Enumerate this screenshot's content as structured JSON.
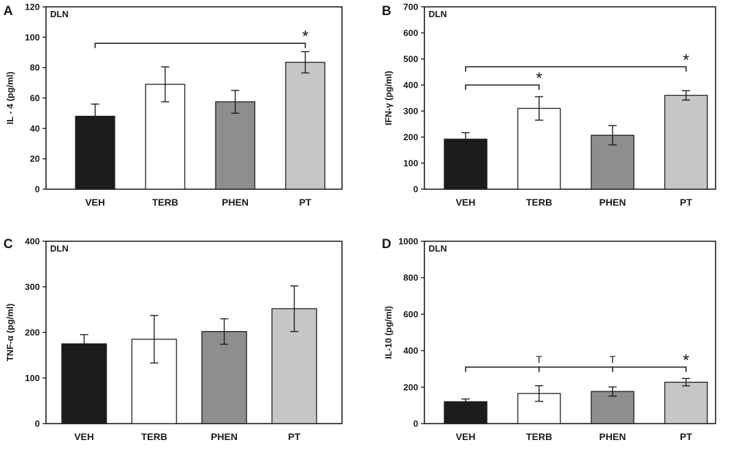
{
  "figure": {
    "colors": {
      "VEH": "#1c1c1c",
      "TERB": "#ffffff",
      "PHEN": "#8e8e8e",
      "PT": "#c6c6c6",
      "axis": "#1a1a1a"
    }
  },
  "chart_data": [
    {
      "type": "bar",
      "letter": "A",
      "region": "DLN",
      "ylabel": "IL - 4 (pg/ml)",
      "ylim": [
        0,
        120
      ],
      "yticks": [
        "0",
        "20",
        "40",
        "60",
        "80",
        "100",
        "120"
      ],
      "categories": [
        "VEH",
        "TERB",
        "PHEN",
        "PT"
      ],
      "values": [
        48,
        69,
        57.5,
        83.5
      ],
      "errors": [
        8,
        11.5,
        7.5,
        7
      ],
      "comparisons": [
        {
          "from": 0,
          "to": 3,
          "level": 96,
          "symbol": "*"
        }
      ]
    },
    {
      "type": "bar",
      "letter": "B",
      "region": "DLN",
      "ylabel": "IFN-γ (pg/ml)",
      "ylim": [
        0,
        700
      ],
      "yticks": [
        "0",
        "100",
        "200",
        "300",
        "400",
        "500",
        "600",
        "700"
      ],
      "categories": [
        "VEH",
        "TERB",
        "PHEN",
        "PT"
      ],
      "values": [
        192,
        310,
        207,
        360
      ],
      "errors": [
        25,
        45,
        37,
        18
      ],
      "comparisons": [
        {
          "from": 0,
          "to": 3,
          "level": 470,
          "symbol": "*"
        },
        {
          "from": 0,
          "to": 1,
          "level": 400,
          "symbol": "*"
        }
      ]
    },
    {
      "type": "bar",
      "letter": "C",
      "region": "DLN",
      "ylabel": "TNF-α (pg/ml)",
      "ylim": [
        0,
        400
      ],
      "yticks": [
        "0",
        "100",
        "200",
        "300",
        "400"
      ],
      "categories": [
        "VEH",
        "TERB",
        "PHEN",
        "PT"
      ],
      "values": [
        175,
        185,
        202,
        252
      ],
      "errors": [
        20,
        52,
        28,
        50
      ],
      "comparisons": []
    },
    {
      "type": "bar",
      "letter": "D",
      "region": "DLN",
      "ylabel": "IL-10 (pg/ml)",
      "ylim": [
        0,
        1000
      ],
      "yticks": [
        "0",
        "200",
        "400",
        "600",
        "800",
        "1000"
      ],
      "categories": [
        "VEH",
        "TERB",
        "PHEN",
        "PT"
      ],
      "values": [
        120,
        165,
        176,
        227
      ],
      "errors": [
        15,
        43,
        25,
        20
      ],
      "comparisons": [
        {
          "from": 0,
          "to": 3,
          "level": 310,
          "symbol": "*",
          "markers": [
            {
              "index": 1,
              "symbol": "T"
            },
            {
              "index": 2,
              "symbol": "T"
            }
          ]
        }
      ]
    }
  ]
}
